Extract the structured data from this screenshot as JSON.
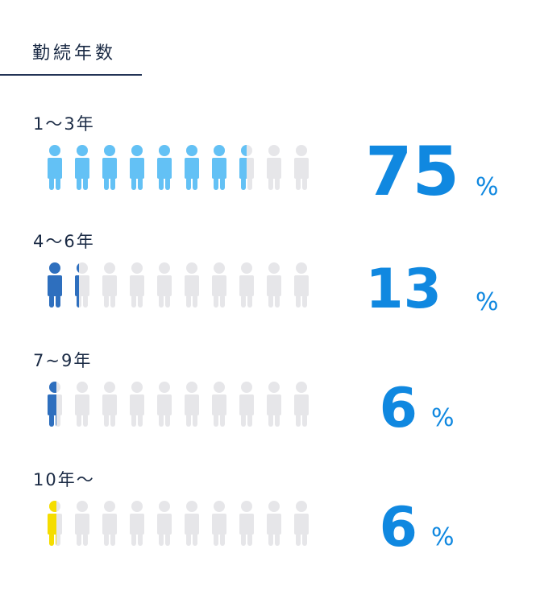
{
  "title": "勤続年数",
  "colors": {
    "grey": "#e6e6e9",
    "accent_text": "#1088e0"
  },
  "chart_data": {
    "type": "bar",
    "title": "勤続年数",
    "categories": [
      "1〜3年",
      "4〜6年",
      "7~9年",
      "10年〜"
    ],
    "values": [
      75,
      13,
      6,
      6
    ],
    "icons_total": 10,
    "series_colors": [
      "#63c1f5",
      "#2e6fbe",
      "#2e6fbe",
      "#f5dd00"
    ]
  },
  "rows": [
    {
      "label": "1〜3年",
      "value": "75",
      "unit": "%"
    },
    {
      "label": "4〜6年",
      "value": "13",
      "unit": "%"
    },
    {
      "label": "7~9年",
      "value": "6",
      "unit": "%"
    },
    {
      "label": "10年〜",
      "value": "6",
      "unit": "%"
    }
  ]
}
